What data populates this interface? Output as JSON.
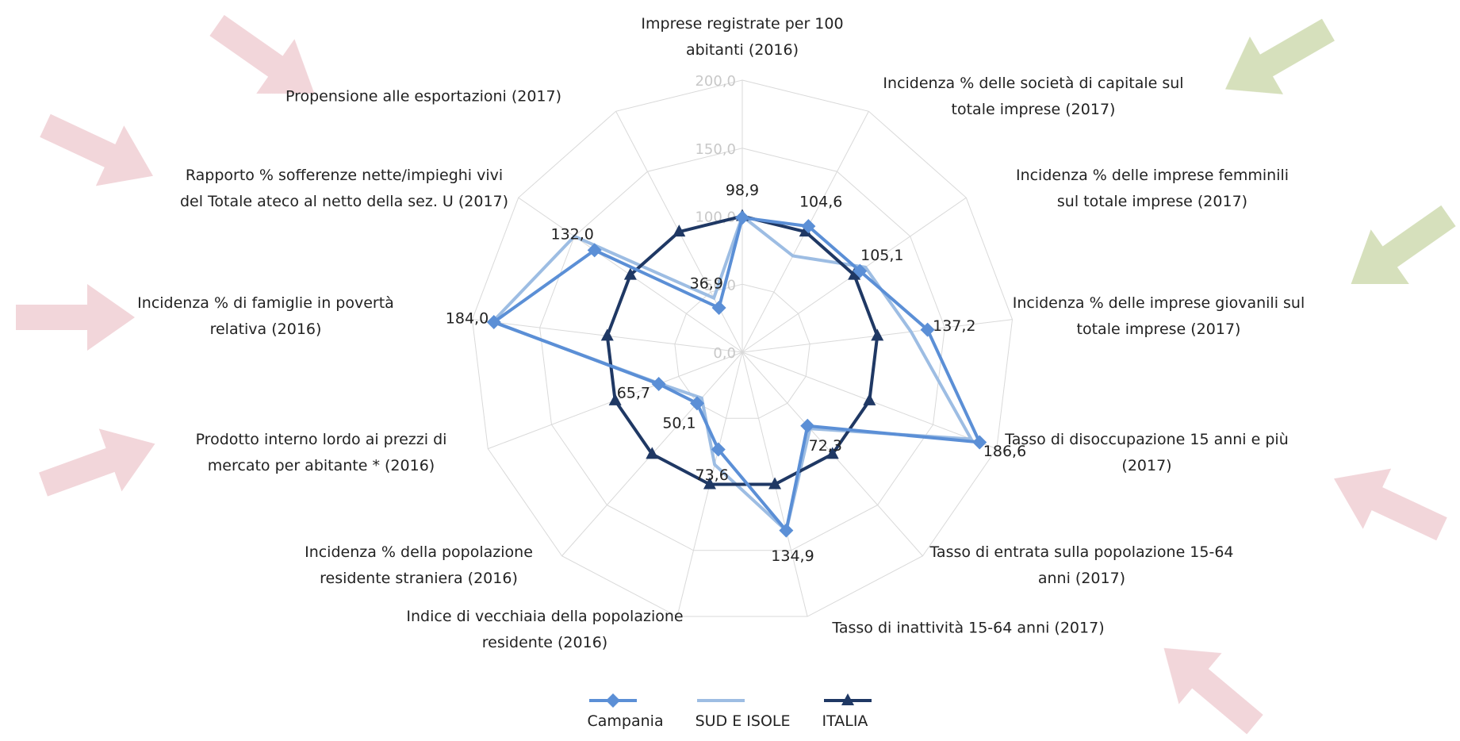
{
  "chart_data": {
    "type": "radar",
    "categories": [
      "Imprese registrate per 100 abitanti (2016)",
      "Incidenza % delle società di capitale sul totale imprese (2017)",
      "Incidenza % delle imprese femminili sul totale imprese (2017)",
      "Incidenza % delle imprese giovanili sul totale imprese (2017)",
      "Tasso di disoccupazione 15 anni e più (2017)",
      "Tasso di entrata sulla popolazione 15-64 anni (2017)",
      "Tasso di inattività 15-64 anni (2017)",
      "Indice di vecchiaia della popolazione residente (2016)",
      "Incidenza % della popolazione residente straniera (2016)",
      "Prodotto interno lordo ai prezzi di mercato per abitante * (2016)",
      "Incidenza % di famiglie in povertà relativa (2016)",
      "Rapporto % sofferenze nette/impieghi vivi del Totale ateco al netto della sez. U (2017)",
      "Propensione alle esportazioni (2017)"
    ],
    "series": [
      {
        "name": "Campania",
        "color": "#5b8fd6",
        "marker": "diamond",
        "values": [
          98.9,
          104.6,
          105.1,
          137.2,
          186.6,
          72.3,
          134.9,
          73.6,
          50.1,
          65.7,
          184.0,
          132.0,
          36.9
        ],
        "value_labels": [
          "98,9",
          "104,6",
          "105,1",
          "137,2",
          "186,6",
          "72,3",
          "134,9",
          "73,6",
          "50,1",
          "65,7",
          "184,0",
          "132,0",
          "36,9"
        ]
      },
      {
        "name": "SUD E ISOLE",
        "color": "#9dbde3",
        "marker": "none",
        "values": [
          100,
          80,
          110,
          125,
          180,
          75,
          135,
          85,
          45,
          65,
          185,
          150,
          45
        ]
      },
      {
        "name": "ITALIA",
        "color": "#1f3864",
        "marker": "triangle",
        "values": [
          100,
          100,
          100,
          100,
          100,
          100,
          100,
          100,
          100,
          100,
          100,
          100,
          100
        ]
      }
    ],
    "ylim": [
      0,
      200
    ],
    "yticks": [
      {
        "value": 0,
        "label": "0,0"
      },
      {
        "value": 50,
        "label": "50,0"
      },
      {
        "value": 100,
        "label": "100,0"
      },
      {
        "value": 150,
        "label": "150,0"
      },
      {
        "value": 200,
        "label": "200,0"
      }
    ],
    "grid": true
  }
}
